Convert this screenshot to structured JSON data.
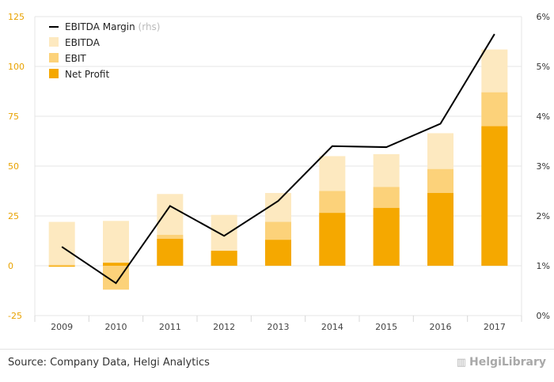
{
  "chart_data": {
    "type": "bar",
    "categories": [
      "2009",
      "2010",
      "2011",
      "2012",
      "2013",
      "2014",
      "2015",
      "2016",
      "2017"
    ],
    "series": [
      {
        "name": "EBITDA",
        "type": "bar",
        "axis": "left",
        "color": "#fde9c0",
        "values": [
          22,
          22.5,
          36,
          25.5,
          36.5,
          55,
          56,
          66.5,
          108.5
        ]
      },
      {
        "name": "EBIT",
        "type": "bar",
        "axis": "left",
        "color": "#fcd27a",
        "values": [
          0.5,
          -12,
          15.5,
          7.5,
          22,
          37.5,
          39.5,
          48.5,
          87
        ]
      },
      {
        "name": "Net Profit",
        "type": "bar",
        "axis": "left",
        "color": "#f5a800",
        "values": [
          0,
          1.5,
          13.5,
          7.5,
          13,
          26.5,
          29,
          36.5,
          70
        ]
      },
      {
        "name": "EBITDA Margin",
        "name_suffix": "(rhs)",
        "type": "line",
        "axis": "right",
        "color": "#000000",
        "values": [
          1.38,
          0.65,
          2.2,
          1.6,
          2.3,
          3.4,
          3.38,
          3.85,
          5.65
        ]
      }
    ],
    "y_left": {
      "min": -25,
      "max": 125,
      "ticks": [
        -25,
        0,
        25,
        50,
        75,
        100,
        125
      ]
    },
    "y_right": {
      "min": 0,
      "max": 6,
      "ticks": [
        "0%",
        "1%",
        "2%",
        "3%",
        "4%",
        "5%",
        "6%"
      ]
    },
    "legend_position": "top-left",
    "grid": "horizontal"
  },
  "footer": {
    "source": "Source: Company Data, Helgi Analytics",
    "brand": "HelgiLibrary"
  }
}
